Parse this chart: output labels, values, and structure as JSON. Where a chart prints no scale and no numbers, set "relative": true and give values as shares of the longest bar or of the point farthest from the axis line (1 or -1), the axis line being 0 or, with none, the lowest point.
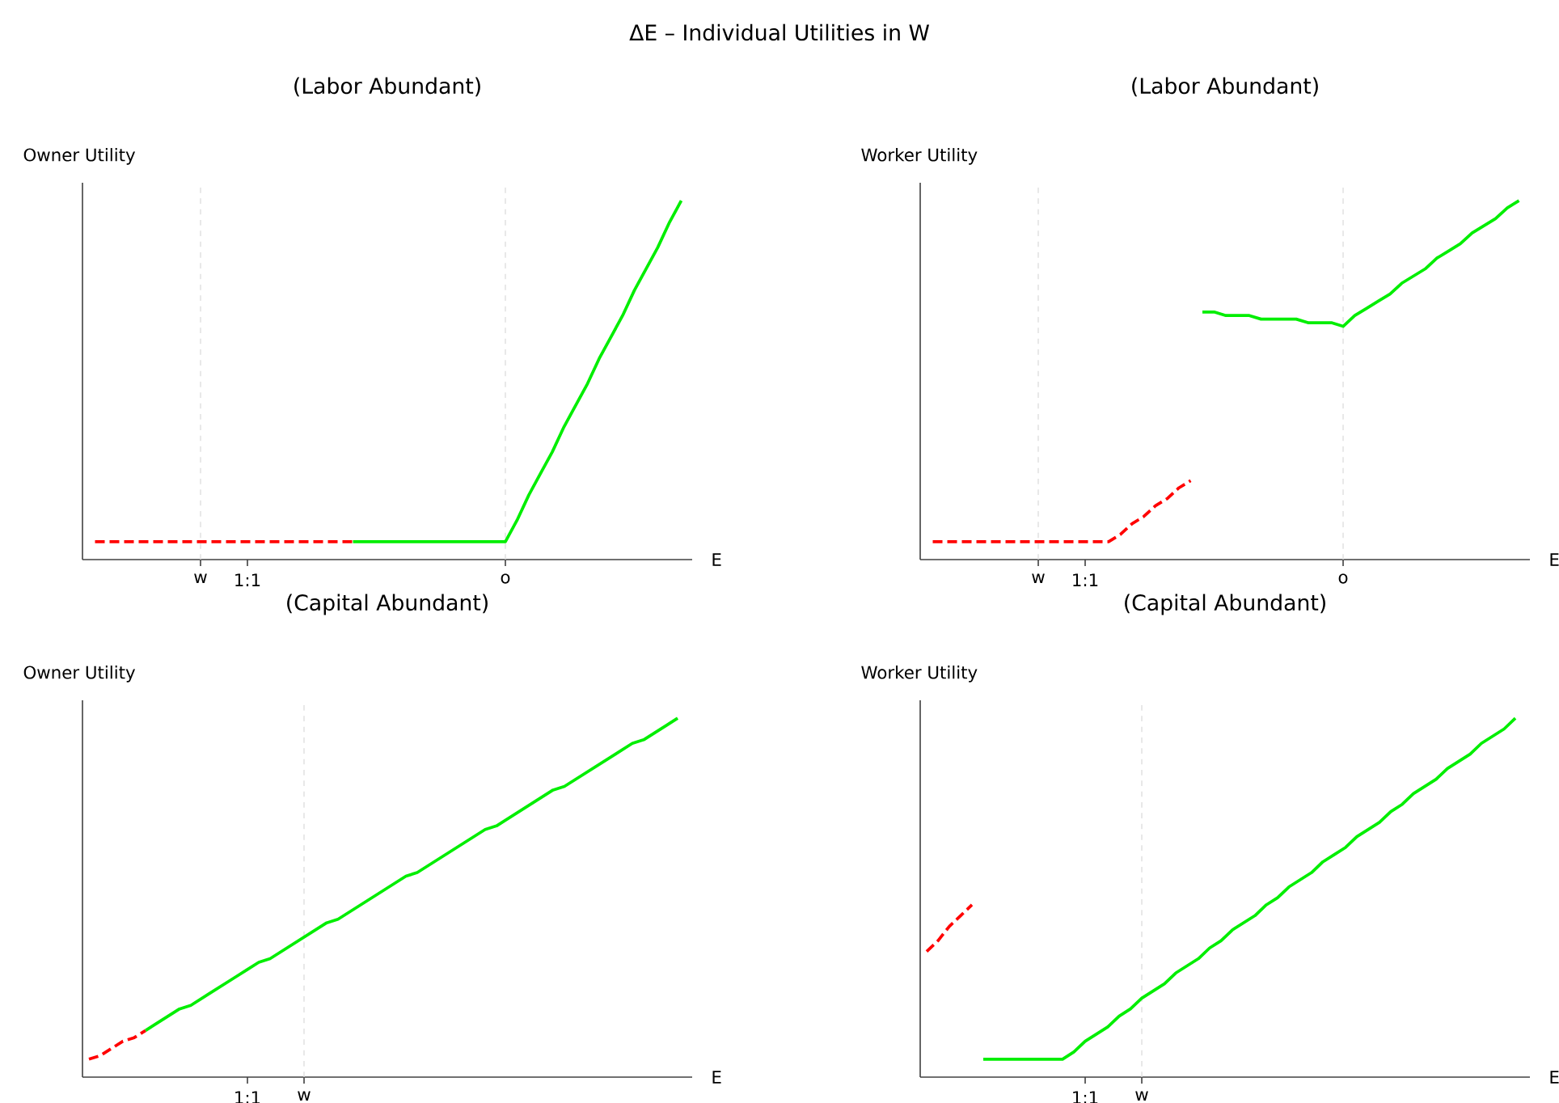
{
  "chart_data": [
    {
      "type": "line",
      "title": "(Labor Abundant)",
      "annotations": [
        "ΔE – Individual Utilities in W"
      ],
      "xlabel": "E",
      "ylabel": "Owner Utility",
      "relative": true,
      "categories": [
        null,
        null,
        null,
        null,
        null,
        null,
        null,
        null,
        null,
        null,
        "w",
        null,
        null,
        null,
        "1:1",
        null,
        null,
        null,
        null,
        null,
        null,
        null,
        null,
        null,
        null,
        null,
        null,
        null,
        null,
        null,
        null,
        null,
        null,
        null,
        null,
        null,
        "o",
        null,
        null,
        null,
        null,
        null,
        null,
        null,
        null,
        null,
        null,
        null,
        null,
        null,
        null,
        null
      ],
      "ref_lines": [
        {
          "axis": "x",
          "value": "w",
          "color": "#dddddd",
          "line_style": "dashed"
        },
        {
          "axis": "x",
          "value": "o",
          "color": "#dddddd",
          "line_style": "dashed"
        }
      ],
      "series": [
        {
          "color": "#ff0000",
          "line_style": "dashed",
          "values": [
            null,
            0.05,
            0.05,
            0.05,
            0.05,
            0.05,
            0.05,
            0.05,
            0.05,
            0.05,
            0.05,
            0.05,
            0.05,
            0.05,
            0.05,
            0.05,
            0.05,
            0.05,
            0.05,
            0.05,
            0.05,
            0.05,
            0.05,
            0.05,
            null,
            null,
            null,
            null,
            null,
            null,
            null,
            null,
            null,
            null,
            null,
            null,
            null,
            null,
            null,
            null,
            null,
            null,
            null,
            null,
            null,
            null,
            null,
            null,
            null,
            null,
            null,
            null
          ]
        },
        {
          "color": "#00ee00",
          "line_style": "solid",
          "values": [
            null,
            null,
            null,
            null,
            null,
            null,
            null,
            null,
            null,
            null,
            null,
            null,
            null,
            null,
            null,
            null,
            null,
            null,
            null,
            null,
            null,
            null,
            null,
            0.05,
            0.05,
            0.05,
            0.05,
            0.05,
            0.05,
            0.05,
            0.05,
            0.05,
            0.05,
            0.05,
            0.05,
            0.05,
            0.05,
            0.11,
            0.18,
            0.24,
            0.3,
            0.37,
            0.43,
            0.49,
            0.56,
            0.62,
            0.68,
            0.75,
            0.81,
            0.87,
            0.94,
            1
          ]
        }
      ]
    },
    {
      "type": "line",
      "title": "(Labor Abundant)",
      "xlabel": "E",
      "ylabel": "Worker Utility",
      "relative": true,
      "categories": [
        null,
        null,
        null,
        null,
        null,
        null,
        null,
        null,
        null,
        null,
        "w",
        null,
        null,
        null,
        "1:1",
        null,
        null,
        null,
        null,
        null,
        null,
        null,
        null,
        null,
        null,
        null,
        null,
        null,
        null,
        null,
        null,
        null,
        null,
        null,
        null,
        null,
        "o",
        null,
        null,
        null,
        null,
        null,
        null,
        null,
        null,
        null,
        null,
        null,
        null,
        null,
        null,
        null
      ],
      "ref_lines": [
        {
          "axis": "x",
          "value": "w",
          "color": "#dddddd",
          "line_style": "dashed"
        },
        {
          "axis": "x",
          "value": "o",
          "color": "#dddddd",
          "line_style": "dashed"
        }
      ],
      "series": [
        {
          "color": "#ff0000",
          "line_style": "dashed",
          "values": [
            null,
            0.05,
            0.05,
            0.05,
            0.05,
            0.05,
            0.05,
            0.05,
            0.05,
            0.05,
            0.05,
            0.05,
            0.05,
            0.05,
            0.05,
            0.05,
            0.05,
            0.07,
            0.1,
            0.12,
            0.15,
            0.17,
            0.2,
            0.22,
            null,
            null,
            null,
            null,
            null,
            null,
            null,
            null,
            null,
            null,
            null,
            null,
            null,
            null,
            null,
            null,
            null,
            null,
            null,
            null,
            null,
            null,
            null,
            null,
            null,
            null,
            null,
            null
          ]
        },
        {
          "color": "#00ee00",
          "line_style": "solid",
          "values": [
            null,
            null,
            null,
            null,
            null,
            null,
            null,
            null,
            null,
            null,
            null,
            null,
            null,
            null,
            null,
            null,
            null,
            null,
            null,
            null,
            null,
            null,
            null,
            null,
            0.69,
            0.69,
            0.68,
            0.68,
            0.68,
            0.67,
            0.67,
            0.67,
            0.67,
            0.66,
            0.66,
            0.66,
            0.65,
            0.68,
            0.7,
            0.72,
            0.74,
            0.77,
            0.79,
            0.81,
            0.84,
            0.86,
            0.88,
            0.91,
            0.93,
            0.95,
            0.98,
            1
          ]
        }
      ]
    },
    {
      "type": "line",
      "title": "(Capital Abundant)",
      "xlabel": "E",
      "ylabel": "Owner Utility",
      "relative": true,
      "categories": [
        null,
        null,
        null,
        null,
        null,
        null,
        null,
        null,
        null,
        null,
        null,
        null,
        null,
        null,
        "1:1",
        null,
        null,
        null,
        null,
        "w",
        null,
        null,
        null,
        null,
        null,
        null,
        null,
        null,
        null,
        null,
        null,
        null,
        null,
        null,
        null,
        null,
        null,
        null,
        null,
        null,
        null,
        null,
        null,
        null,
        null,
        null,
        null,
        null,
        null,
        null,
        null,
        null,
        null
      ],
      "ref_lines": [
        {
          "axis": "x",
          "value": "w",
          "color": "#dddddd",
          "line_style": "dashed"
        }
      ],
      "series": [
        {
          "color": "#ff0000",
          "line_style": "dashed",
          "values": [
            0.05,
            0.06,
            0.08,
            0.1,
            0.11,
            0.13,
            null,
            null,
            null,
            null,
            null,
            null,
            null,
            null,
            null,
            null,
            null,
            null,
            null,
            null,
            null,
            null,
            null,
            null,
            null,
            null,
            null,
            null,
            null,
            null,
            null,
            null,
            null,
            null,
            null,
            null,
            null,
            null,
            null,
            null,
            null,
            null,
            null,
            null,
            null,
            null,
            null,
            null,
            null,
            null,
            null,
            null,
            null
          ]
        },
        {
          "color": "#00ee00",
          "line_style": "solid",
          "values": [
            null,
            null,
            null,
            null,
            null,
            0.13,
            0.15,
            0.17,
            0.19,
            0.2,
            0.22,
            0.24,
            0.26,
            0.28,
            0.3,
            0.32,
            0.33,
            0.35,
            0.37,
            0.39,
            0.41,
            0.43,
            0.44,
            0.46,
            0.48,
            0.5,
            0.52,
            0.54,
            0.56,
            0.57,
            0.59,
            0.61,
            0.63,
            0.65,
            0.67,
            0.69,
            0.7,
            0.72,
            0.74,
            0.76,
            0.78,
            0.8,
            0.81,
            0.83,
            0.85,
            0.87,
            0.89,
            0.91,
            0.93,
            0.94,
            0.96,
            0.98,
            1
          ]
        }
      ]
    },
    {
      "type": "line",
      "title": "(Capital Abundant)",
      "xlabel": "E",
      "ylabel": "Worker Utility",
      "relative": true,
      "categories": [
        null,
        null,
        null,
        null,
        null,
        null,
        null,
        null,
        null,
        null,
        null,
        null,
        null,
        null,
        "1:1",
        null,
        null,
        null,
        null,
        "w",
        null,
        null,
        null,
        null,
        null,
        null,
        null,
        null,
        null,
        null,
        null,
        null,
        null,
        null,
        null,
        null,
        null,
        null,
        null,
        null,
        null,
        null,
        null,
        null,
        null,
        null,
        null,
        null,
        null,
        null,
        null,
        null,
        null
      ],
      "ref_lines": [
        {
          "axis": "x",
          "value": "w",
          "color": "#dddddd",
          "line_style": "dashed"
        }
      ],
      "series": [
        {
          "color": "#ff0000",
          "line_style": "dashed",
          "values": [
            0.35,
            0.38,
            0.42,
            0.45,
            0.48,
            null,
            null,
            null,
            null,
            null,
            null,
            null,
            null,
            null,
            null,
            null,
            null,
            null,
            null,
            null,
            null,
            null,
            null,
            null,
            null,
            null,
            null,
            null,
            null,
            null,
            null,
            null,
            null,
            null,
            null,
            null,
            null,
            null,
            null,
            null,
            null,
            null,
            null,
            null,
            null,
            null,
            null,
            null,
            null,
            null,
            null,
            null,
            null
          ]
        },
        {
          "color": "#00ee00",
          "line_style": "solid",
          "values": [
            null,
            null,
            null,
            null,
            null,
            0.05,
            0.05,
            0.05,
            0.05,
            0.05,
            0.05,
            0.05,
            0.05,
            0.07,
            0.1,
            0.12,
            0.14,
            0.17,
            0.19,
            0.22,
            0.24,
            0.26,
            0.29,
            0.31,
            0.33,
            0.36,
            0.38,
            0.41,
            0.43,
            0.45,
            0.48,
            0.5,
            0.53,
            0.55,
            0.57,
            0.6,
            0.62,
            0.64,
            0.67,
            0.69,
            0.71,
            0.74,
            0.76,
            0.79,
            0.81,
            0.83,
            0.86,
            0.88,
            0.9,
            0.93,
            0.95,
            0.97,
            1
          ]
        }
      ]
    }
  ]
}
